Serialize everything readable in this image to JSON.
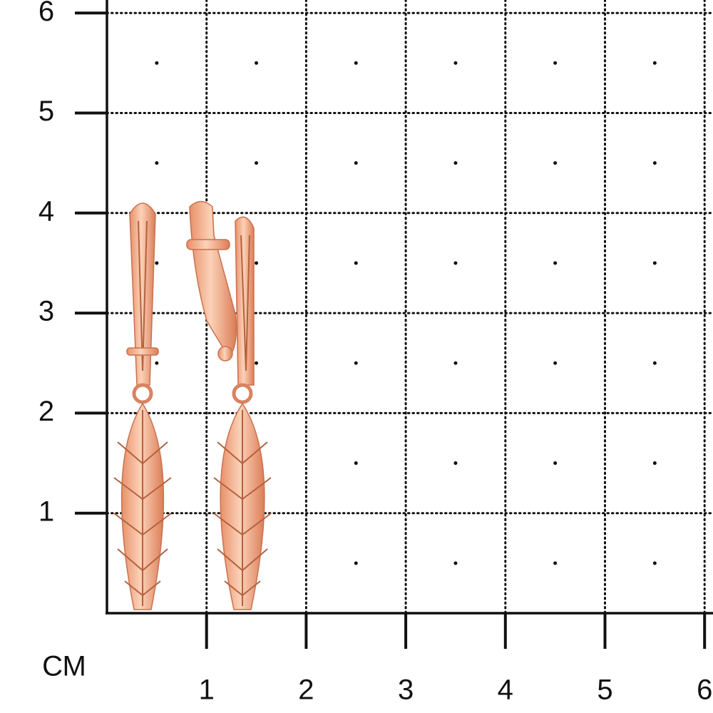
{
  "axis_unit": "СМ",
  "y_ticks": [
    1,
    2,
    3,
    4,
    5,
    6
  ],
  "x_ticks": [
    1,
    2,
    3,
    4,
    5,
    6
  ]
}
